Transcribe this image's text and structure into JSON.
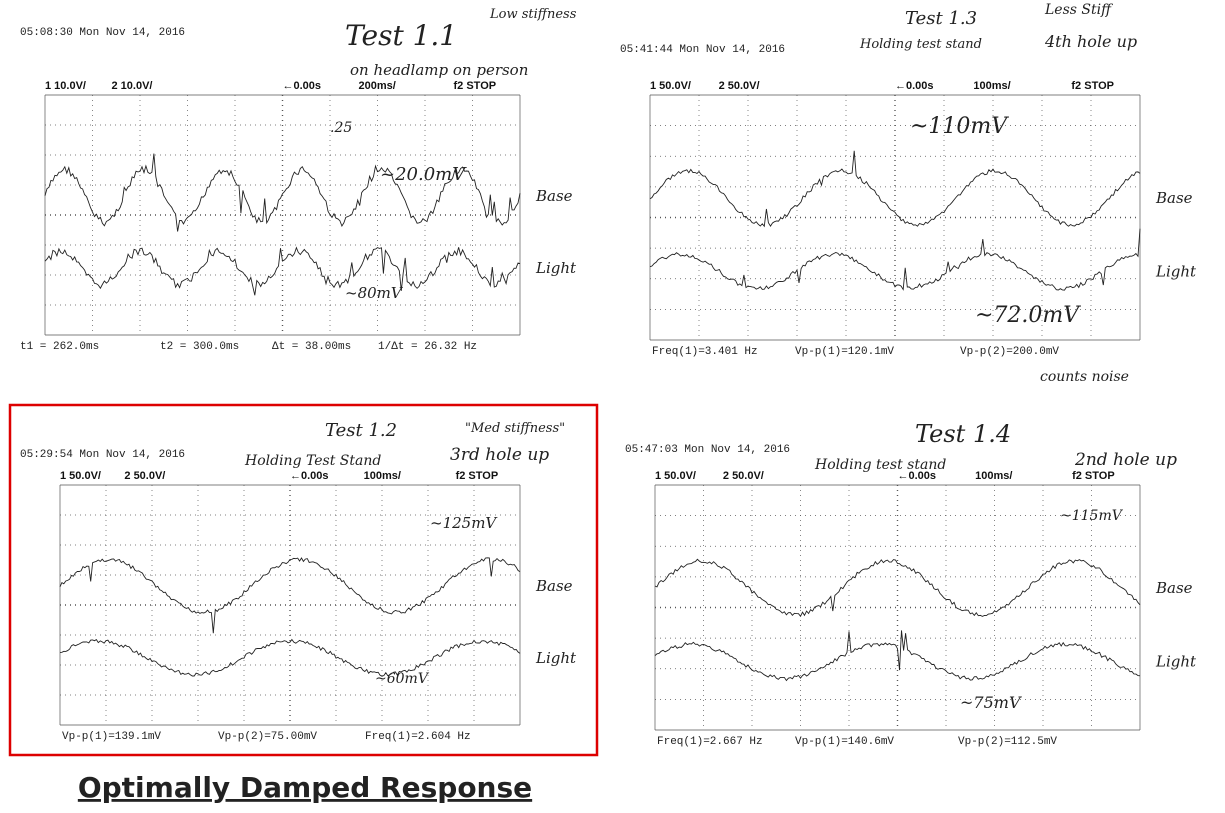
{
  "panels": [
    {
      "timestamp": "05:08:30  Mon Nov 14, 2016",
      "header": {
        "ch1": "1 10.0V/",
        "ch2": "2 10.0V/",
        "delay": "←0.00s",
        "timebase": "200ms/",
        "trigger": "f2 STOP"
      },
      "channels": [
        "Base",
        "Light"
      ],
      "notes": [
        "Test 1.1",
        "Low stiffness",
        "on headlamp on person",
        ".25",
        "~20.0mV",
        "~80mV"
      ],
      "footer": [
        "t1 = 262.0ms",
        "t2 = 300.0ms",
        "Δt = 38.00ms",
        "1/Δt = 26.32 Hz"
      ]
    },
    {
      "timestamp": "05:41:44  Mon Nov 14, 2016",
      "header": {
        "ch1": "1 50.0V/",
        "ch2": "2 50.0V/",
        "delay": "←0.00s",
        "timebase": "100ms/",
        "trigger": "f2 STOP"
      },
      "channels": [
        "Base",
        "Light"
      ],
      "notes": [
        "Test 1.3",
        "Less Stiff",
        "4th hole up",
        "Holding test stand",
        "~110mV",
        "~72.0mV",
        "counts noise"
      ],
      "footer": [
        "Freq(1)=3.401 Hz",
        "Vp-p(1)=120.1mV",
        "Vp-p(2)=200.0mV"
      ]
    },
    {
      "timestamp": "05:29:54  Mon Nov 14, 2016",
      "header": {
        "ch1": "1 50.0V/",
        "ch2": "2 50.0V/",
        "delay": "←0.00s",
        "timebase": "100ms/",
        "trigger": "f2 STOP"
      },
      "channels": [
        "Base",
        "Light"
      ],
      "notes": [
        "Test 1.2",
        "\"Med stiffness\"",
        "3rd hole up",
        "Holding Test Stand",
        "~125mV",
        "~60mV"
      ],
      "footer": [
        "Vp-p(1)=139.1mV",
        "Vp-p(2)=75.00mV",
        "Freq(1)=2.604 Hz"
      ]
    },
    {
      "timestamp": "05:47:03  Mon Nov 14, 2016",
      "header": {
        "ch1": "1 50.0V/",
        "ch2": "2 50.0V/",
        "delay": "←0.00s",
        "timebase": "100ms/",
        "trigger": "f2 STOP"
      },
      "channels": [
        "Base",
        "Light"
      ],
      "notes": [
        "Test 1.4",
        "2nd hole up",
        "Holding test stand",
        "~115mV",
        "~75mV"
      ],
      "footer": [
        "Freq(1)=2.667 Hz",
        "Vp-p(1)=140.6mV",
        "Vp-p(2)=112.5mV"
      ]
    }
  ],
  "caption": "Optimally Damped Response"
}
